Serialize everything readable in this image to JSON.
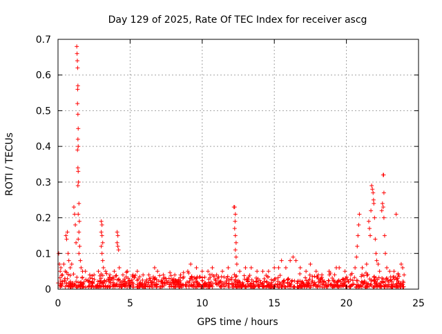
{
  "chart_data": {
    "type": "scatter",
    "title": "Day 129 of 2025, Rate Of TEC Index for receiver ascg",
    "xlabel": "GPS time / hours",
    "ylabel": "ROTI / TECUs",
    "xlim": [
      0,
      25
    ],
    "ylim": [
      0,
      0.7
    ],
    "xticks": [
      "0",
      "5",
      "10",
      "15",
      "20",
      "25"
    ],
    "yticks": [
      "0",
      "0.1",
      "0.2",
      "0.3",
      "0.4",
      "0.5",
      "0.6",
      "0.7"
    ],
    "grid": true,
    "marker": "plus",
    "color": "#ff0000",
    "series": [
      {
        "points": [
          [
            0.05,
            0.1
          ],
          [
            0.1,
            0.07
          ],
          [
            0.15,
            0.05
          ],
          [
            0.2,
            0.06
          ],
          [
            0.3,
            0.04
          ],
          [
            0.4,
            0.07
          ],
          [
            0.5,
            0.05
          ],
          [
            0.55,
            0.15
          ],
          [
            0.6,
            0.14
          ],
          [
            0.65,
            0.16
          ],
          [
            0.7,
            0.1
          ],
          [
            0.75,
            0.08
          ],
          [
            0.85,
            0.06
          ],
          [
            0.95,
            0.07
          ],
          [
            1.1,
            0.23
          ],
          [
            1.15,
            0.21
          ],
          [
            1.2,
            0.18
          ],
          [
            1.25,
            0.13
          ],
          [
            1.3,
            0.68
          ],
          [
            1.32,
            0.66
          ],
          [
            1.34,
            0.64
          ],
          [
            1.36,
            0.62
          ],
          [
            1.38,
            0.57
          ],
          [
            1.36,
            0.56
          ],
          [
            1.35,
            0.52
          ],
          [
            1.38,
            0.49
          ],
          [
            1.4,
            0.45
          ],
          [
            1.38,
            0.42
          ],
          [
            1.4,
            0.4
          ],
          [
            1.35,
            0.39
          ],
          [
            1.38,
            0.34
          ],
          [
            1.4,
            0.33
          ],
          [
            1.42,
            0.3
          ],
          [
            1.38,
            0.29
          ],
          [
            1.45,
            0.24
          ],
          [
            1.4,
            0.21
          ],
          [
            1.48,
            0.19
          ],
          [
            1.45,
            0.16
          ],
          [
            1.4,
            0.14
          ],
          [
            1.5,
            0.12
          ],
          [
            1.45,
            0.1
          ],
          [
            1.55,
            0.08
          ],
          [
            1.6,
            0.06
          ],
          [
            1.7,
            0.05
          ],
          [
            1.9,
            0.05
          ],
          [
            2.2,
            0.04
          ],
          [
            2.5,
            0.04
          ],
          [
            2.8,
            0.05
          ],
          [
            3.0,
            0.19
          ],
          [
            3.05,
            0.18
          ],
          [
            3.0,
            0.16
          ],
          [
            3.05,
            0.15
          ],
          [
            3.1,
            0.13
          ],
          [
            3.0,
            0.12
          ],
          [
            3.05,
            0.1
          ],
          [
            3.1,
            0.08
          ],
          [
            3.15,
            0.06
          ],
          [
            3.3,
            0.05
          ],
          [
            3.6,
            0.04
          ],
          [
            3.9,
            0.05
          ],
          [
            4.1,
            0.16
          ],
          [
            4.15,
            0.15
          ],
          [
            4.1,
            0.13
          ],
          [
            4.15,
            0.12
          ],
          [
            4.2,
            0.11
          ],
          [
            4.25,
            0.06
          ],
          [
            4.5,
            0.04
          ],
          [
            4.8,
            0.05
          ],
          [
            5.2,
            0.04
          ],
          [
            5.5,
            0.05
          ],
          [
            5.9,
            0.04
          ],
          [
            6.3,
            0.04
          ],
          [
            6.7,
            0.06
          ],
          [
            6.9,
            0.05
          ],
          [
            7.3,
            0.04
          ],
          [
            7.7,
            0.03
          ],
          [
            8.1,
            0.04
          ],
          [
            8.5,
            0.04
          ],
          [
            9.0,
            0.05
          ],
          [
            9.2,
            0.07
          ],
          [
            9.6,
            0.06
          ],
          [
            10.0,
            0.05
          ],
          [
            10.4,
            0.05
          ],
          [
            10.7,
            0.06
          ],
          [
            11.0,
            0.04
          ],
          [
            11.4,
            0.05
          ],
          [
            11.8,
            0.06
          ],
          [
            12.2,
            0.23
          ],
          [
            12.25,
            0.23
          ],
          [
            12.3,
            0.21
          ],
          [
            12.28,
            0.19
          ],
          [
            12.25,
            0.17
          ],
          [
            12.3,
            0.15
          ],
          [
            12.35,
            0.13
          ],
          [
            12.3,
            0.11
          ],
          [
            12.35,
            0.09
          ],
          [
            12.4,
            0.07
          ],
          [
            12.6,
            0.05
          ],
          [
            13.0,
            0.06
          ],
          [
            13.4,
            0.06
          ],
          [
            13.8,
            0.05
          ],
          [
            14.2,
            0.05
          ],
          [
            14.6,
            0.05
          ],
          [
            15.0,
            0.06
          ],
          [
            15.3,
            0.06
          ],
          [
            15.5,
            0.08
          ],
          [
            15.8,
            0.06
          ],
          [
            16.1,
            0.08
          ],
          [
            16.3,
            0.09
          ],
          [
            16.5,
            0.08
          ],
          [
            16.8,
            0.06
          ],
          [
            17.2,
            0.05
          ],
          [
            17.5,
            0.07
          ],
          [
            17.9,
            0.05
          ],
          [
            18.3,
            0.04
          ],
          [
            18.8,
            0.05
          ],
          [
            19.3,
            0.06
          ],
          [
            19.5,
            0.06
          ],
          [
            19.9,
            0.05
          ],
          [
            20.3,
            0.04
          ],
          [
            20.6,
            0.06
          ],
          [
            20.7,
            0.09
          ],
          [
            20.75,
            0.12
          ],
          [
            20.8,
            0.15
          ],
          [
            20.85,
            0.18
          ],
          [
            20.9,
            0.21
          ],
          [
            21.1,
            0.06
          ],
          [
            21.4,
            0.07
          ],
          [
            21.55,
            0.19
          ],
          [
            21.6,
            0.17
          ],
          [
            21.65,
            0.15
          ],
          [
            21.7,
            0.22
          ],
          [
            21.75,
            0.29
          ],
          [
            21.8,
            0.28
          ],
          [
            21.85,
            0.27
          ],
          [
            21.88,
            0.25
          ],
          [
            21.9,
            0.24
          ],
          [
            21.95,
            0.2
          ],
          [
            22.0,
            0.14
          ],
          [
            22.05,
            0.1
          ],
          [
            22.1,
            0.08
          ],
          [
            22.2,
            0.07
          ],
          [
            22.3,
            0.05
          ],
          [
            22.45,
            0.22
          ],
          [
            22.5,
            0.24
          ],
          [
            22.55,
            0.32
          ],
          [
            22.58,
            0.32
          ],
          [
            22.6,
            0.27
          ],
          [
            22.55,
            0.23
          ],
          [
            22.6,
            0.2
          ],
          [
            22.65,
            0.15
          ],
          [
            22.7,
            0.1
          ],
          [
            22.8,
            0.06
          ],
          [
            23.0,
            0.05
          ],
          [
            23.3,
            0.05
          ],
          [
            23.45,
            0.21
          ],
          [
            23.6,
            0.04
          ],
          [
            23.8,
            0.07
          ],
          [
            23.9,
            0.06
          ],
          [
            24.0,
            0.04
          ]
        ]
      }
    ],
    "noise_band": {
      "x_range": [
        0,
        24
      ],
      "baseline_max": 0.045
    }
  }
}
